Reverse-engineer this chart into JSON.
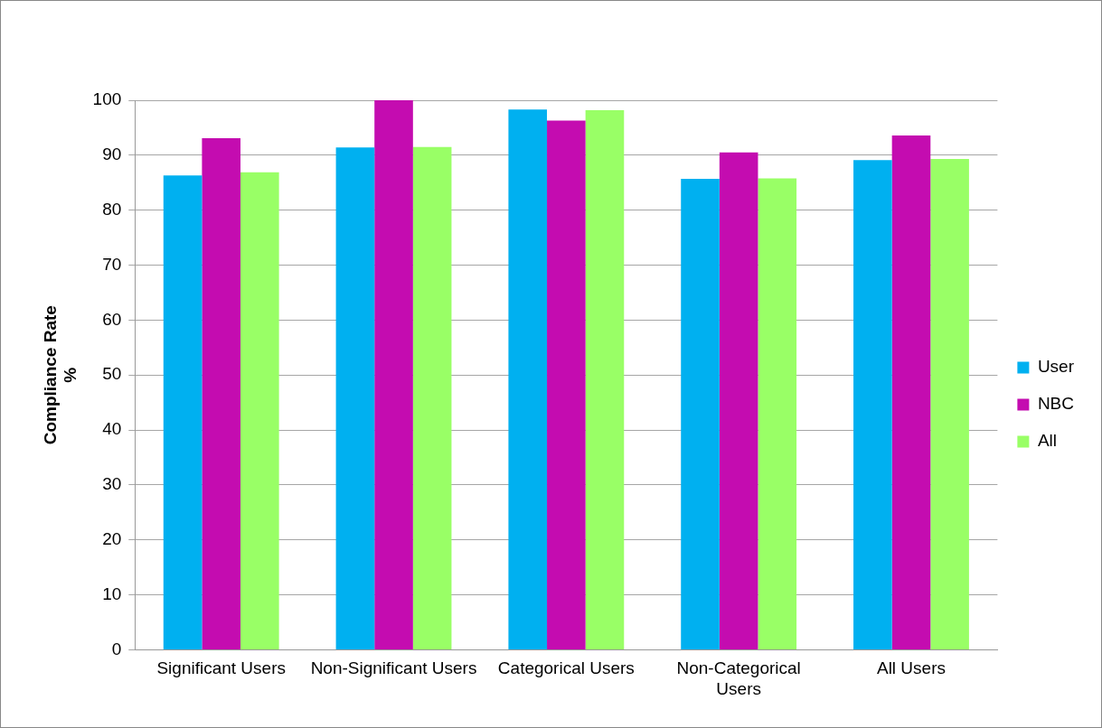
{
  "chart_data": {
    "type": "bar",
    "ylabel": "Compliance Rate %",
    "categories": [
      "Significant Users",
      "Non-Significant Users",
      "Categorical Users",
      "Non-Categorical Users",
      "All Users"
    ],
    "series": [
      {
        "name": "User",
        "color": "#00b0f0",
        "values": [
          86.3,
          91.4,
          98.3,
          85.7,
          89.1
        ]
      },
      {
        "name": "NBC",
        "color": "#c40cb0",
        "values": [
          93.1,
          100,
          96.3,
          90.5,
          93.6
        ]
      },
      {
        "name": "All",
        "color": "#99ff66",
        "values": [
          86.9,
          91.5,
          98.2,
          85.8,
          89.3
        ]
      }
    ],
    "ylim": [
      0,
      100
    ],
    "yticks": [
      0,
      10,
      20,
      30,
      40,
      50,
      60,
      70,
      80,
      90,
      100
    ],
    "grid": "y",
    "legend": "right"
  }
}
